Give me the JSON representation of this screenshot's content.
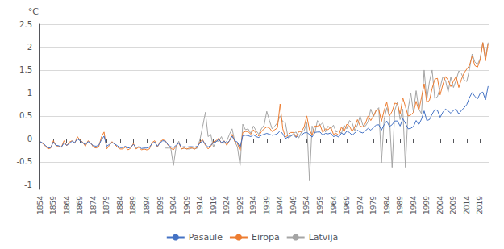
{
  "chart_data": {
    "type": "line",
    "ylabel": "°C",
    "x": [
      1854,
      1855,
      1856,
      1857,
      1858,
      1859,
      1860,
      1861,
      1862,
      1863,
      1864,
      1865,
      1866,
      1867,
      1868,
      1869,
      1870,
      1871,
      1872,
      1873,
      1874,
      1875,
      1876,
      1877,
      1878,
      1879,
      1880,
      1881,
      1882,
      1883,
      1884,
      1885,
      1886,
      1887,
      1888,
      1889,
      1890,
      1891,
      1892,
      1893,
      1894,
      1895,
      1896,
      1897,
      1898,
      1899,
      1900,
      1901,
      1902,
      1903,
      1904,
      1905,
      1906,
      1907,
      1908,
      1909,
      1910,
      1911,
      1912,
      1913,
      1914,
      1915,
      1916,
      1917,
      1918,
      1919,
      1920,
      1921,
      1922,
      1923,
      1924,
      1925,
      1926,
      1927,
      1928,
      1929,
      1930,
      1931,
      1932,
      1933,
      1934,
      1935,
      1936,
      1937,
      1938,
      1939,
      1940,
      1941,
      1942,
      1943,
      1944,
      1945,
      1946,
      1947,
      1948,
      1949,
      1950,
      1951,
      1952,
      1953,
      1954,
      1955,
      1956,
      1957,
      1958,
      1959,
      1960,
      1961,
      1962,
      1963,
      1964,
      1965,
      1966,
      1967,
      1968,
      1969,
      1970,
      1971,
      1972,
      1973,
      1974,
      1975,
      1976,
      1977,
      1978,
      1979,
      1980,
      1981,
      1982,
      1983,
      1984,
      1985,
      1986,
      1987,
      1988,
      1989,
      1990,
      1991,
      1992,
      1993,
      1994,
      1995,
      1996,
      1997,
      1998,
      1999,
      2000,
      2001,
      2002,
      2003,
      2004,
      2005,
      2006,
      2007,
      2008,
      2009,
      2010,
      2011,
      2012,
      2013,
      2014,
      2015,
      2016,
      2017,
      2018,
      2019,
      2020,
      2021,
      2022
    ],
    "series": [
      {
        "name": "Pasaulē",
        "color": "#4472C4",
        "values": [
          -0.06,
          -0.09,
          -0.14,
          -0.2,
          -0.19,
          -0.07,
          -0.14,
          -0.15,
          -0.18,
          -0.09,
          -0.14,
          -0.1,
          -0.05,
          -0.08,
          0.0,
          -0.04,
          -0.08,
          -0.13,
          -0.06,
          -0.1,
          -0.15,
          -0.16,
          -0.14,
          -0.02,
          0.06,
          -0.16,
          -0.12,
          -0.08,
          -0.11,
          -0.15,
          -0.19,
          -0.19,
          -0.16,
          -0.2,
          -0.18,
          -0.12,
          -0.19,
          -0.17,
          -0.21,
          -0.2,
          -0.2,
          -0.18,
          -0.1,
          -0.07,
          -0.16,
          -0.09,
          -0.04,
          -0.05,
          -0.13,
          -0.17,
          -0.19,
          -0.14,
          -0.09,
          -0.18,
          -0.17,
          -0.18,
          -0.17,
          -0.17,
          -0.18,
          -0.16,
          -0.09,
          -0.04,
          -0.12,
          -0.18,
          -0.14,
          -0.08,
          -0.06,
          -0.01,
          -0.08,
          -0.05,
          -0.1,
          -0.04,
          0.06,
          -0.04,
          -0.07,
          -0.19,
          0.07,
          0.08,
          0.07,
          0.05,
          0.09,
          0.05,
          0.03,
          0.08,
          0.1,
          0.12,
          0.1,
          0.08,
          0.09,
          0.11,
          0.18,
          0.11,
          0.01,
          0.04,
          0.07,
          0.09,
          0.03,
          0.09,
          0.08,
          0.13,
          0.14,
          0.1,
          0.04,
          0.14,
          0.15,
          0.15,
          0.08,
          0.12,
          0.11,
          0.13,
          0.05,
          0.07,
          0.04,
          0.13,
          0.09,
          0.17,
          0.14,
          0.08,
          0.13,
          0.19,
          0.15,
          0.13,
          0.18,
          0.23,
          0.19,
          0.25,
          0.3,
          0.31,
          0.19,
          0.31,
          0.39,
          0.27,
          0.31,
          0.39,
          0.39,
          0.28,
          0.44,
          0.34,
          0.22,
          0.23,
          0.27,
          0.4,
          0.31,
          0.43,
          0.61,
          0.4,
          0.42,
          0.54,
          0.64,
          0.62,
          0.47,
          0.58,
          0.65,
          0.61,
          0.56,
          0.62,
          0.65,
          0.54,
          0.62,
          0.68,
          0.75,
          0.9,
          1.01,
          0.93,
          0.87,
          0.99,
          1.02,
          0.85,
          1.15
        ]
      },
      {
        "name": "Eiropā",
        "color": "#ED7D31",
        "values": [
          -0.06,
          -0.1,
          -0.16,
          -0.22,
          -0.2,
          -0.04,
          -0.15,
          -0.16,
          -0.18,
          -0.04,
          -0.15,
          -0.07,
          -0.04,
          -0.1,
          0.05,
          -0.03,
          -0.07,
          -0.16,
          -0.04,
          -0.09,
          -0.18,
          -0.2,
          -0.17,
          0.04,
          0.15,
          -0.22,
          -0.14,
          -0.06,
          -0.12,
          -0.18,
          -0.22,
          -0.22,
          -0.18,
          -0.24,
          -0.2,
          -0.1,
          -0.22,
          -0.18,
          -0.24,
          -0.22,
          -0.24,
          -0.22,
          -0.08,
          -0.04,
          -0.18,
          -0.06,
          -0.02,
          -0.04,
          -0.14,
          -0.2,
          -0.24,
          -0.16,
          -0.08,
          -0.22,
          -0.2,
          -0.22,
          -0.2,
          -0.2,
          -0.22,
          -0.18,
          -0.06,
          -0.02,
          -0.14,
          -0.22,
          -0.16,
          -0.06,
          -0.04,
          0.02,
          -0.1,
          -0.04,
          -0.14,
          -0.04,
          0.1,
          -0.06,
          -0.1,
          -0.26,
          0.14,
          0.16,
          0.16,
          0.1,
          0.2,
          0.12,
          0.06,
          0.16,
          0.22,
          0.26,
          0.24,
          0.16,
          0.2,
          0.24,
          0.76,
          0.22,
          0.04,
          0.08,
          0.14,
          0.14,
          0.04,
          0.16,
          0.16,
          0.26,
          0.5,
          0.2,
          0.08,
          0.28,
          0.28,
          0.3,
          0.14,
          0.22,
          0.2,
          0.26,
          0.1,
          0.12,
          0.08,
          0.26,
          0.16,
          0.32,
          0.28,
          0.16,
          0.26,
          0.42,
          0.28,
          0.26,
          0.34,
          0.5,
          0.4,
          0.5,
          0.62,
          0.64,
          0.38,
          0.62,
          0.8,
          0.5,
          0.6,
          0.78,
          0.76,
          0.54,
          0.9,
          0.7,
          0.5,
          0.52,
          0.58,
          0.82,
          0.62,
          0.9,
          1.2,
          0.8,
          0.84,
          1.1,
          1.3,
          1.32,
          0.96,
          1.18,
          1.36,
          1.28,
          1.14,
          1.26,
          1.36,
          1.12,
          1.3,
          1.44,
          1.52,
          1.6,
          1.8,
          1.6,
          1.56,
          1.72,
          2.1,
          1.7,
          2.08
        ]
      },
      {
        "name": "Latvijā",
        "color": "#A5A5A5",
        "values": [
          null,
          null,
          null,
          null,
          null,
          null,
          null,
          null,
          null,
          null,
          null,
          null,
          null,
          null,
          null,
          null,
          null,
          null,
          null,
          null,
          null,
          null,
          null,
          null,
          null,
          null,
          null,
          null,
          null,
          null,
          null,
          null,
          null,
          null,
          null,
          null,
          null,
          null,
          null,
          null,
          null,
          null,
          null,
          null,
          null,
          null,
          null,
          -0.2,
          -0.2,
          -0.2,
          -0.58,
          -0.18,
          -0.05,
          -0.22,
          -0.2,
          -0.22,
          -0.22,
          -0.2,
          -0.22,
          -0.2,
          0.0,
          0.28,
          0.58,
          0.05,
          0.1,
          -0.18,
          -0.05,
          -0.05,
          0.05,
          -0.1,
          -0.05,
          0.1,
          0.22,
          -0.05,
          -0.18,
          -0.58,
          0.32,
          0.2,
          0.22,
          0.12,
          0.28,
          0.18,
          0.1,
          0.22,
          0.3,
          0.6,
          0.4,
          0.22,
          0.28,
          0.35,
          0.5,
          0.38,
          0.35,
          0.02,
          0.05,
          0.12,
          0.15,
          0.02,
          0.15,
          0.18,
          0.35,
          -0.9,
          0.28,
          0.12,
          0.4,
          0.3,
          0.35,
          0.15,
          0.28,
          0.22,
          0.3,
          0.15,
          0.18,
          0.12,
          0.3,
          0.22,
          0.4,
          0.35,
          0.18,
          0.3,
          0.5,
          0.3,
          0.28,
          0.38,
          0.65,
          0.48,
          0.62,
          0.68,
          -0.52,
          0.42,
          0.68,
          0.48,
          -0.62,
          0.62,
          0.8,
          0.42,
          0.65,
          -0.62,
          0.65,
          1.0,
          0.58,
          1.05,
          0.65,
          0.55,
          1.5,
          0.85,
          1.25,
          1.5,
          0.88,
          0.92,
          1.12,
          1.35,
          1.28,
          1.02,
          1.35,
          1.12,
          1.28,
          1.48,
          1.42,
          1.28,
          1.25,
          1.52,
          1.85,
          1.68,
          1.62,
          1.75,
          2.1,
          1.78,
          2.1
        ]
      }
    ],
    "xlim": [
      1853.5,
      2022.5
    ],
    "xticks": [
      1854,
      1859,
      1864,
      1869,
      1874,
      1879,
      1884,
      1889,
      1894,
      1899,
      1904,
      1909,
      1914,
      1919,
      1924,
      1929,
      1934,
      1939,
      1944,
      1949,
      1954,
      1959,
      1964,
      1969,
      1974,
      1979,
      1984,
      1989,
      1994,
      1999,
      2004,
      2009,
      2014,
      2019
    ],
    "ylim": [
      -1.1,
      2.5
    ],
    "yticks": [
      -1,
      -0.5,
      0,
      0.5,
      1,
      1.5,
      2,
      2.5
    ],
    "grid": true,
    "legend": "bottom"
  }
}
